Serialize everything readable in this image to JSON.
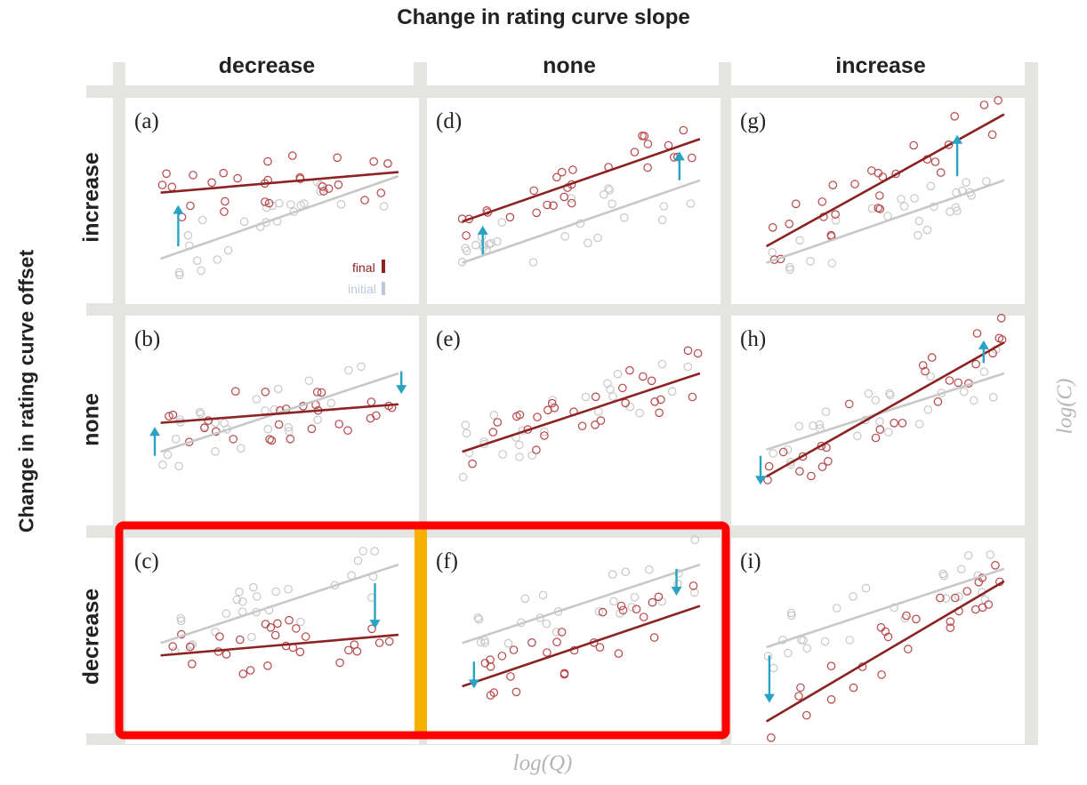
{
  "title": "Change in rating curve slope",
  "column_headers": [
    "decrease",
    "none",
    "increase"
  ],
  "row_axis_title": "Change in rating curve offset",
  "row_headers": [
    "increase",
    "none",
    "decrease"
  ],
  "x_axis_label": "log(Q)",
  "y_axis_label": "log(C)",
  "legend": {
    "final": "final",
    "initial": "initial"
  },
  "colors": {
    "final": "#8b2323",
    "initial": "#c8c8c8",
    "arrow": "#29a3c4",
    "frame": "#e4e4e0",
    "highlight_box": "#ff0000",
    "highlight_divider": "#f5b000"
  },
  "panels": [
    {
      "label": "(a)",
      "slope_change": "decrease",
      "offset_change": "increase",
      "arrows": [
        "up"
      ]
    },
    {
      "label": "(b)",
      "slope_change": "decrease",
      "offset_change": "none",
      "arrows": [
        "up",
        "down"
      ]
    },
    {
      "label": "(c)",
      "slope_change": "decrease",
      "offset_change": "decrease",
      "arrows": [
        "down"
      ]
    },
    {
      "label": "(d)",
      "slope_change": "none",
      "offset_change": "increase",
      "arrows": [
        "up",
        "up"
      ]
    },
    {
      "label": "(e)",
      "slope_change": "none",
      "offset_change": "none",
      "arrows": []
    },
    {
      "label": "(f)",
      "slope_change": "none",
      "offset_change": "decrease",
      "arrows": [
        "down",
        "down"
      ]
    },
    {
      "label": "(g)",
      "slope_change": "increase",
      "offset_change": "increase",
      "arrows": [
        "up"
      ]
    },
    {
      "label": "(h)",
      "slope_change": "increase",
      "offset_change": "none",
      "arrows": [
        "down",
        "up"
      ]
    },
    {
      "label": "(i)",
      "slope_change": "increase",
      "offset_change": "decrease",
      "arrows": [
        "down"
      ]
    }
  ]
}
